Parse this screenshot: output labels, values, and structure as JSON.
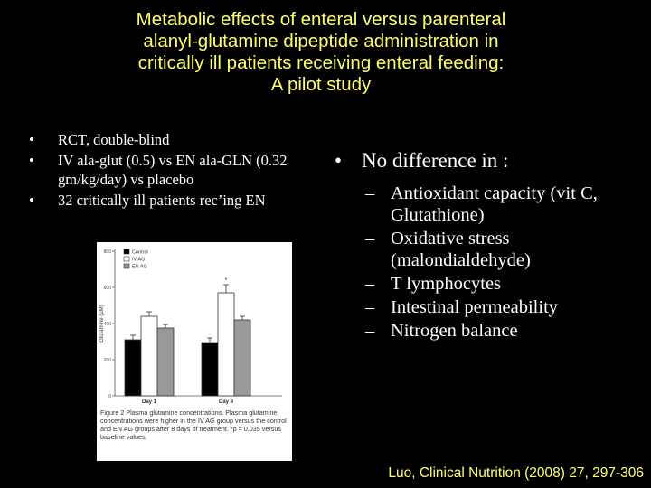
{
  "title": {
    "lines": [
      "Metabolic effects of enteral versus parenteral",
      "alanyl-glutamine dipeptide administration in",
      "critically ill patients receiving enteral feeding:",
      "A pilot study"
    ]
  },
  "left_bullets": [
    "RCT, double-blind",
    "IV ala-glut (0.5) vs EN ala-GLN (0.32 gm/kg/day) vs placebo",
    "32 critically ill patients rec’ing EN"
  ],
  "bullet_glyph": "•",
  "dash_glyph": "–",
  "right": {
    "heading": "No difference in :",
    "items": [
      "Antioxidant capacity (vit C, Glutathione)",
      "Oxidative stress (malondialdehyde)",
      "T lymphocytes",
      "Intestinal permeability",
      "Nitrogen balance"
    ]
  },
  "chart_data": {
    "type": "bar",
    "categories": [
      "Day 1",
      "Day 9"
    ],
    "series": [
      {
        "name": "Control",
        "values": [
          310,
          295
        ],
        "errors": [
          25,
          25
        ],
        "color": "#000000"
      },
      {
        "name": "IV AG",
        "values": [
          440,
          570
        ],
        "errors": [
          25,
          45
        ],
        "color": "#ffffff"
      },
      {
        "name": "EN AG",
        "values": [
          375,
          420
        ],
        "errors": [
          20,
          20
        ],
        "color": "#999999"
      }
    ],
    "ylabel": "Glutamine (μM)",
    "ylim": [
      0,
      800
    ],
    "yticks": [
      "0",
      "200",
      "400",
      "600",
      "800"
    ],
    "annotation": "*",
    "caption": "Figure 2   Plasma glutamine concentrations. Plasma glutamine concentrations were higher in the IV AG group versus the control and EN AG groups after 8 days of treatment. *p = 0.035 versus baseline values."
  },
  "citation": "Luo, Clinical Nutrition (2008) 27, 297-306",
  "colors": {
    "background": "#000000",
    "title": "#ffff66",
    "text": "#ffffff",
    "citation": "#ffff66"
  }
}
